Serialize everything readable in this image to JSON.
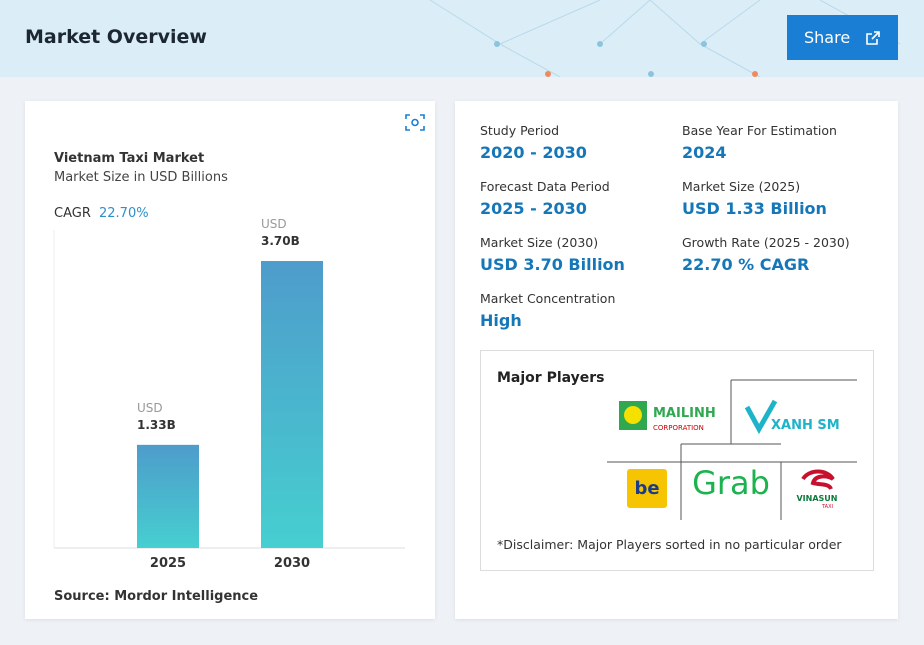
{
  "header": {
    "title": "Market Overview",
    "share": "Share"
  },
  "chart_data": {
    "type": "bar",
    "title": "Vietnam Taxi Market",
    "subtitle": "Market Size in USD Billions",
    "cagr_label": "CAGR",
    "cagr_value": "22.70%",
    "categories": [
      "2025",
      "2030"
    ],
    "values": [
      1.33,
      3.7
    ],
    "value_unit": "USD",
    "value_labels": [
      "1.33B",
      "3.70B"
    ],
    "ylim": [
      0,
      4.1
    ],
    "color": "#4aa3cc",
    "source": "Source: Mordor Intelligence"
  },
  "details": [
    {
      "label": "Study Period",
      "value": "2020 - 2030"
    },
    {
      "label": "Base Year For Estimation",
      "value": "2024"
    },
    {
      "label": "Forecast Data Period",
      "value": "2025 - 2030"
    },
    {
      "label": "Market Size (2025)",
      "value": "USD 1.33 Billion"
    },
    {
      "label": "Market Size (2030)",
      "value": "USD 3.70 Billion"
    },
    {
      "label": "Growth Rate (2025 - 2030)",
      "value": "22.70 % CAGR"
    },
    {
      "label": "Market Concentration",
      "value": "High"
    }
  ],
  "major_players": {
    "title": "Major Players",
    "logos": [
      "MAILINH",
      "CORPORATION",
      "XANH SM",
      "be",
      "Grab",
      "VINASUN",
      "TAXI"
    ],
    "disclaimer": "*Disclaimer: Major Players sorted in no particular order"
  }
}
